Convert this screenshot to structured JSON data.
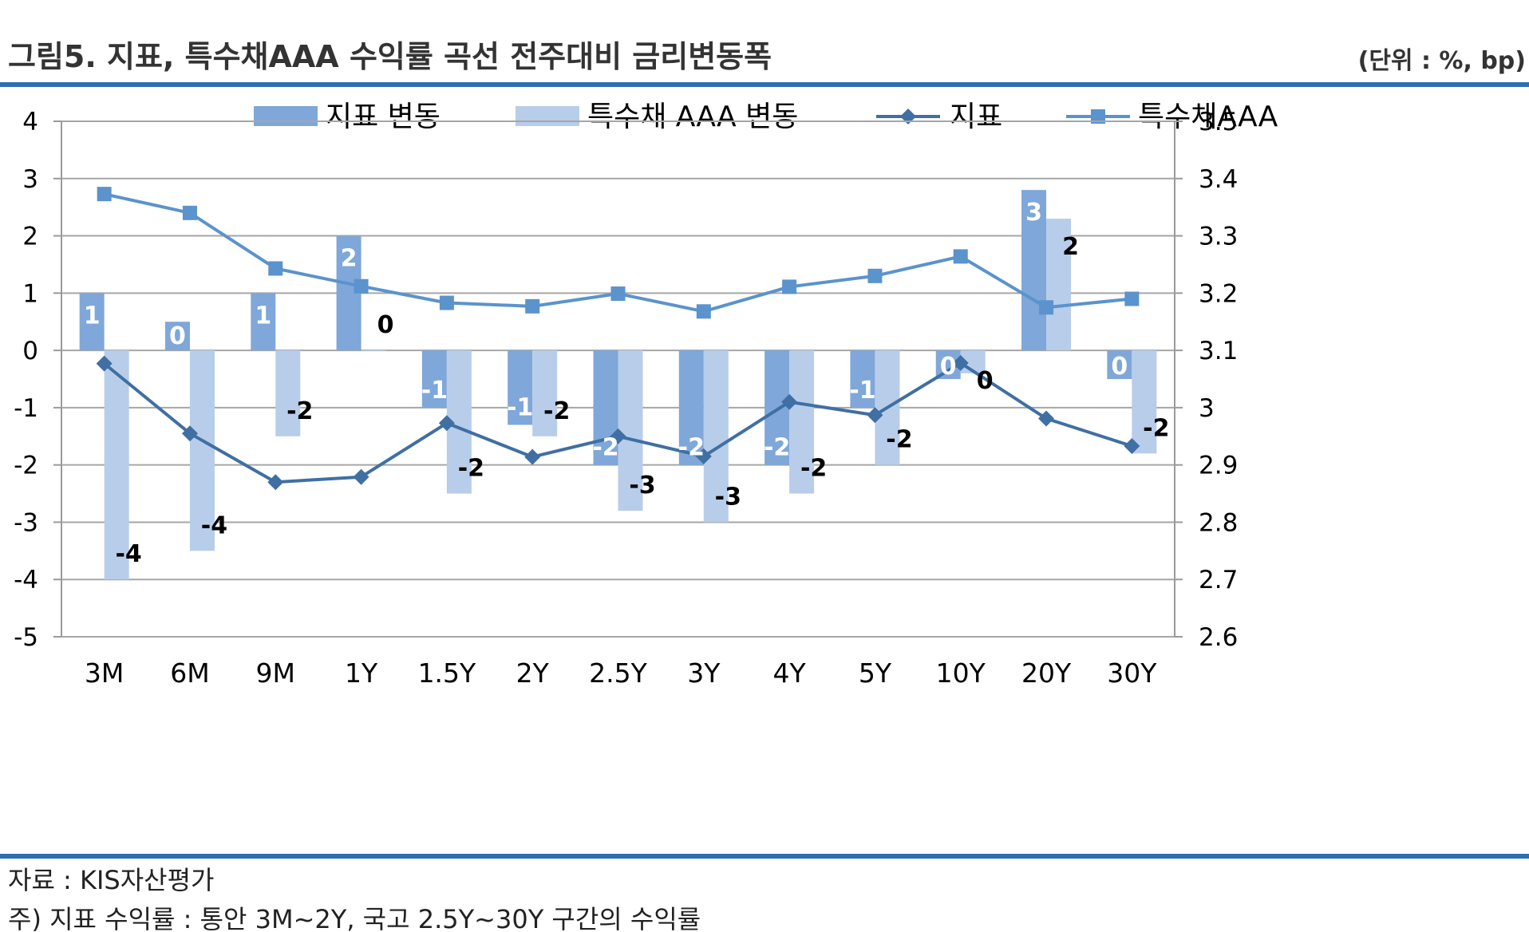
{
  "header": {
    "title": "그림5. 지표, 특수채AAA 수익률 곡선 전주대비 금리변동폭",
    "unit": "(단위 : %, bp)"
  },
  "footer": {
    "source": "자료 : KIS자산평가",
    "note": "주) 지표 수익률 : 통안 3M~2Y, 국고 2.5Y~30Y 구간의 수익률"
  },
  "colors": {
    "bar_index": "#7FA7D9",
    "bar_aaa": "#B8CDEA",
    "line_index": "#3F6FA3",
    "line_aaa": "#5B93CC",
    "rule": "#2E6EB5",
    "axis": "#9a9a9a",
    "grid": "#a6a6a6"
  },
  "chart_data": {
    "type": "bar",
    "categories": [
      "3M",
      "6M",
      "9M",
      "1Y",
      "1.5Y",
      "2Y",
      "2.5Y",
      "3Y",
      "4Y",
      "5Y",
      "10Y",
      "20Y",
      "30Y"
    ],
    "y_left": {
      "ylim": [
        -5,
        4
      ],
      "ticks": [
        "4",
        "3",
        "2",
        "1",
        "0",
        "-1",
        "-2",
        "-3",
        "-4",
        "-5"
      ]
    },
    "y_right": {
      "ylim": [
        2.6,
        3.5
      ],
      "ticks": [
        "3.5",
        "3.4",
        "3.3",
        "3.2",
        "3.1",
        "3",
        "2.9",
        "2.8",
        "2.7",
        "2.6"
      ]
    },
    "grid": true,
    "legend_position": "top",
    "series": [
      {
        "name": "지표 변동",
        "kind": "bar",
        "axis": "left",
        "values": [
          1,
          0.5,
          1,
          2,
          -1,
          -1.3,
          -2,
          -2,
          -2,
          -1,
          -0.5,
          2.8,
          -0.5
        ],
        "labels": [
          "1",
          "0",
          "1",
          "2",
          "-1",
          "-1",
          "-2",
          "-2",
          "-2",
          "-1",
          "0",
          "3",
          "0"
        ]
      },
      {
        "name": "특수채 AAA 변동",
        "kind": "bar",
        "axis": "left",
        "values": [
          -4,
          -3.5,
          -1.5,
          0,
          -2.5,
          -1.5,
          -2.8,
          -3,
          -2.5,
          -2,
          -0.4,
          2.3,
          -1.8
        ],
        "labels": [
          "-4",
          "-4",
          "-2",
          "0",
          "-2",
          "-2",
          "-3",
          "-3",
          "-2",
          "-2",
          "0",
          "2",
          "-2"
        ]
      },
      {
        "name": "지표",
        "kind": "line",
        "marker": "diamond",
        "axis": "right",
        "values": [
          3.077,
          2.955,
          2.87,
          2.879,
          2.973,
          2.914,
          2.95,
          2.915,
          3.01,
          2.987,
          3.078,
          2.981,
          2.933
        ]
      },
      {
        "name": "특수채AAA",
        "kind": "line",
        "marker": "square",
        "axis": "right",
        "values": [
          3.373,
          3.34,
          3.243,
          3.212,
          3.183,
          3.177,
          3.199,
          3.168,
          3.211,
          3.23,
          3.264,
          3.175,
          3.19
        ]
      }
    ]
  }
}
